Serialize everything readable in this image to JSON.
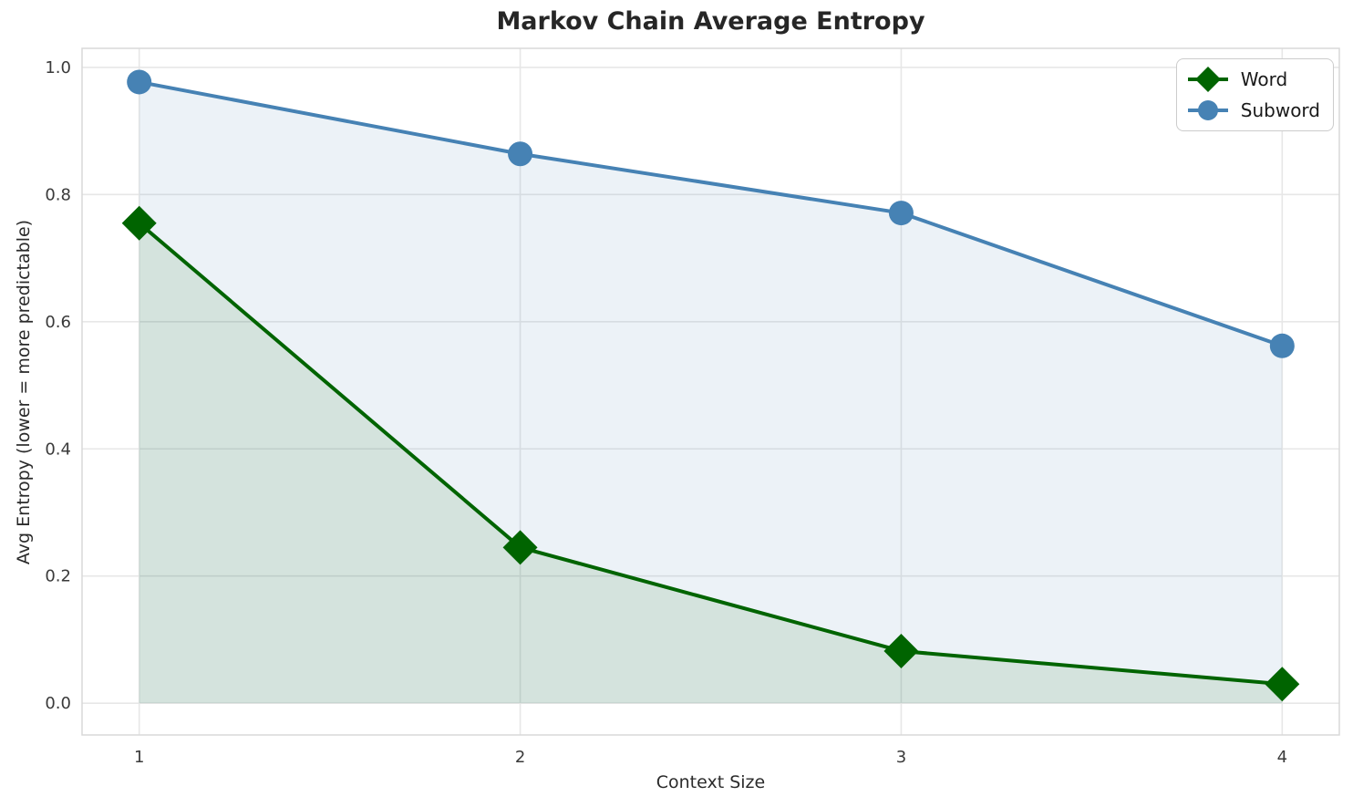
{
  "chart_data": {
    "type": "line",
    "title": "Markov Chain Average Entropy",
    "xlabel": "Context Size",
    "ylabel": "Avg Entropy (lower = more predictable)",
    "x": [
      1,
      2,
      3,
      4
    ],
    "series": [
      {
        "name": "Word",
        "values": [
          0.755,
          0.245,
          0.082,
          0.03
        ],
        "color": "#006400",
        "marker": "diamond",
        "fill_to_zero": true,
        "fill_opacity": 0.1
      },
      {
        "name": "Subword",
        "values": [
          0.977,
          0.864,
          0.771,
          0.562
        ],
        "color": "#4682b4",
        "marker": "circle",
        "fill_to_zero": true,
        "fill_opacity": 0.1
      }
    ],
    "x_ticks": [
      1,
      2,
      3,
      4
    ],
    "x_tick_labels": [
      "1",
      "2",
      "3",
      "4"
    ],
    "y_ticks": [
      0.0,
      0.2,
      0.4,
      0.6,
      0.8,
      1.0
    ],
    "y_tick_labels": [
      "0.0",
      "0.2",
      "0.4",
      "0.6",
      "0.8",
      "1.0"
    ],
    "xlim": [
      0.85,
      4.15
    ],
    "ylim": [
      -0.05,
      1.03
    ],
    "grid": true,
    "legend_position": "upper right",
    "colors": {
      "grid": "#e7e7e7",
      "frame": "#d9d9d9",
      "tick_text": "#3a3a3a",
      "title_text": "#262626",
      "background": "#ffffff"
    }
  }
}
